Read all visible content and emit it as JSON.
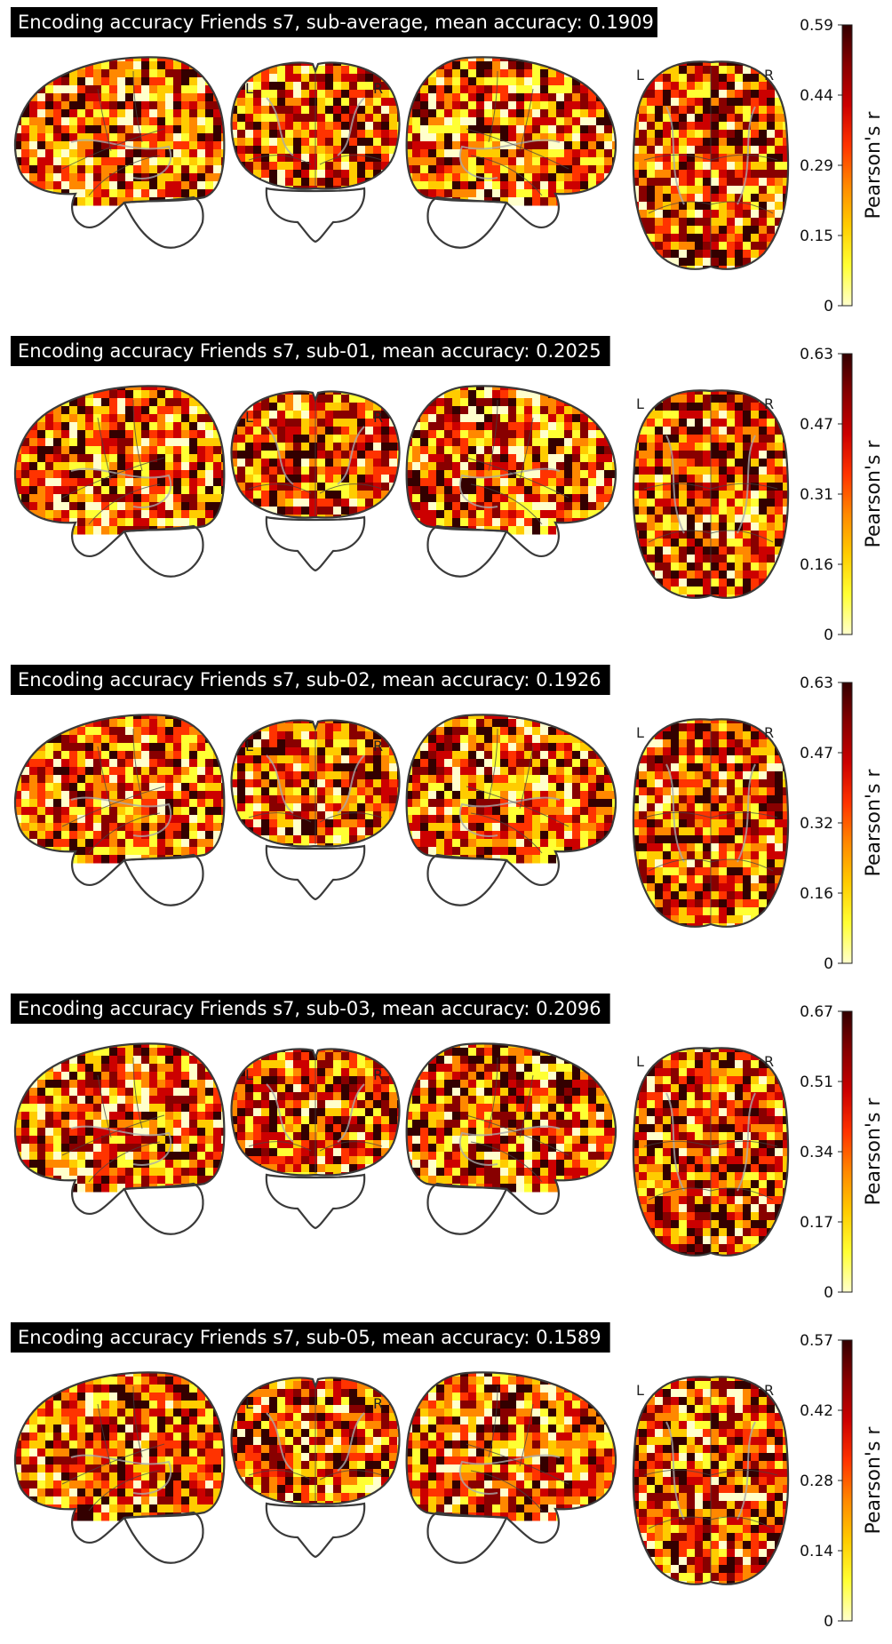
{
  "panels": [
    {
      "title": "Encoding accuracy Friends s7, sub-average, mean accuracy: 0.1909",
      "colorbar": {
        "label": "Pearson's r",
        "ticks": [
          "0.59",
          "0.44",
          "0.29",
          "0.15",
          "0"
        ],
        "max": 0.59
      },
      "orientation_labels": {
        "coronal": [
          "L",
          "R"
        ],
        "axial": [
          "L",
          "R"
        ]
      }
    },
    {
      "title": "Encoding accuracy Friends s7, sub-01, mean accuracy: 0.2025",
      "colorbar": {
        "label": "Pearson's r",
        "ticks": [
          "0.63",
          "0.47",
          "0.31",
          "0.16",
          "0"
        ],
        "max": 0.63
      },
      "orientation_labels": {
        "coronal": [
          "L",
          "R"
        ],
        "axial": [
          "L",
          "R"
        ]
      }
    },
    {
      "title": "Encoding accuracy Friends s7, sub-02, mean accuracy: 0.1926",
      "colorbar": {
        "label": "Pearson's r",
        "ticks": [
          "0.63",
          "0.47",
          "0.32",
          "0.16",
          "0"
        ],
        "max": 0.63
      },
      "orientation_labels": {
        "coronal": [
          "L",
          "R"
        ],
        "axial": [
          "L",
          "R"
        ]
      }
    },
    {
      "title": "Encoding accuracy Friends s7, sub-03, mean accuracy: 0.2096",
      "colorbar": {
        "label": "Pearson's r",
        "ticks": [
          "0.67",
          "0.51",
          "0.34",
          "0.17",
          "0"
        ],
        "max": 0.67
      },
      "orientation_labels": {
        "coronal": [
          "L",
          "R"
        ],
        "axial": [
          "L",
          "R"
        ]
      }
    },
    {
      "title": "Encoding accuracy Friends s7, sub-05, mean accuracy: 0.1589",
      "colorbar": {
        "label": "Pearson's r",
        "ticks": [
          "0.57",
          "0.42",
          "0.28",
          "0.14",
          "0"
        ],
        "max": 0.57
      },
      "orientation_labels": {
        "coronal": [
          "L",
          "R"
        ],
        "axial": [
          "L",
          "R"
        ]
      }
    }
  ],
  "colormap": [
    "#ffffcc",
    "#ffff33",
    "#ffcc00",
    "#ff8800",
    "#ff3300",
    "#cc0000",
    "#880000",
    "#330000"
  ]
}
